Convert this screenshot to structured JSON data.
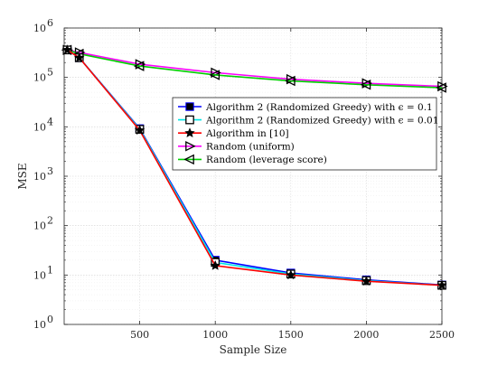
{
  "chart_data": {
    "type": "line",
    "title": "",
    "xlabel": "Sample Size",
    "ylabel": "MSE",
    "xlim": [
      0,
      2500
    ],
    "ylim": [
      1,
      1000000
    ],
    "yscale": "log",
    "grid": true,
    "legend_position": "center-right",
    "x_ticks": [
      500,
      1000,
      1500,
      2000,
      2500
    ],
    "x_tick_labels": [
      "500",
      "1000",
      "1500",
      "2000",
      "2500"
    ],
    "y_ticks": [
      1,
      10,
      100,
      1000,
      10000,
      100000,
      1000000
    ],
    "y_tick_labels": [
      {
        "base": "10",
        "exp": "0"
      },
      {
        "base": "10",
        "exp": "1"
      },
      {
        "base": "10",
        "exp": "2"
      },
      {
        "base": "10",
        "exp": "3"
      },
      {
        "base": "10",
        "exp": "4"
      },
      {
        "base": "10",
        "exp": "5"
      },
      {
        "base": "10",
        "exp": "6"
      }
    ],
    "x": [
      20,
      100,
      500,
      1000,
      1500,
      2000,
      2500
    ],
    "series": [
      {
        "name": "Algorithm 2 (Randomized Greedy) with ϵ = 0.1",
        "color": "#0000ff",
        "marker": "square-filled",
        "values": [
          360000,
          250000,
          9200,
          20,
          11,
          8,
          6.3
        ]
      },
      {
        "name": "Algorithm 2 (Randomized Greedy) with ϵ = 0.01",
        "color": "#00e5e5",
        "marker": "square-open",
        "values": [
          360000,
          250000,
          8900,
          18,
          10.5,
          7.7,
          6.2
        ]
      },
      {
        "name": "Algorithm in [10]",
        "color": "#ff0000",
        "marker": "star",
        "values": [
          360000,
          250000,
          8500,
          15.5,
          10,
          7.5,
          6.2
        ]
      },
      {
        "name": "Random (uniform)",
        "color": "#ff00ff",
        "marker": "triangle-right",
        "values": [
          360000,
          320000,
          185000,
          125000,
          92000,
          76000,
          66000
        ]
      },
      {
        "name": "Random (leverage score)",
        "color": "#00d000",
        "marker": "triangle-left",
        "values": [
          360000,
          300000,
          170000,
          112000,
          85000,
          71000,
          62000
        ]
      }
    ]
  }
}
